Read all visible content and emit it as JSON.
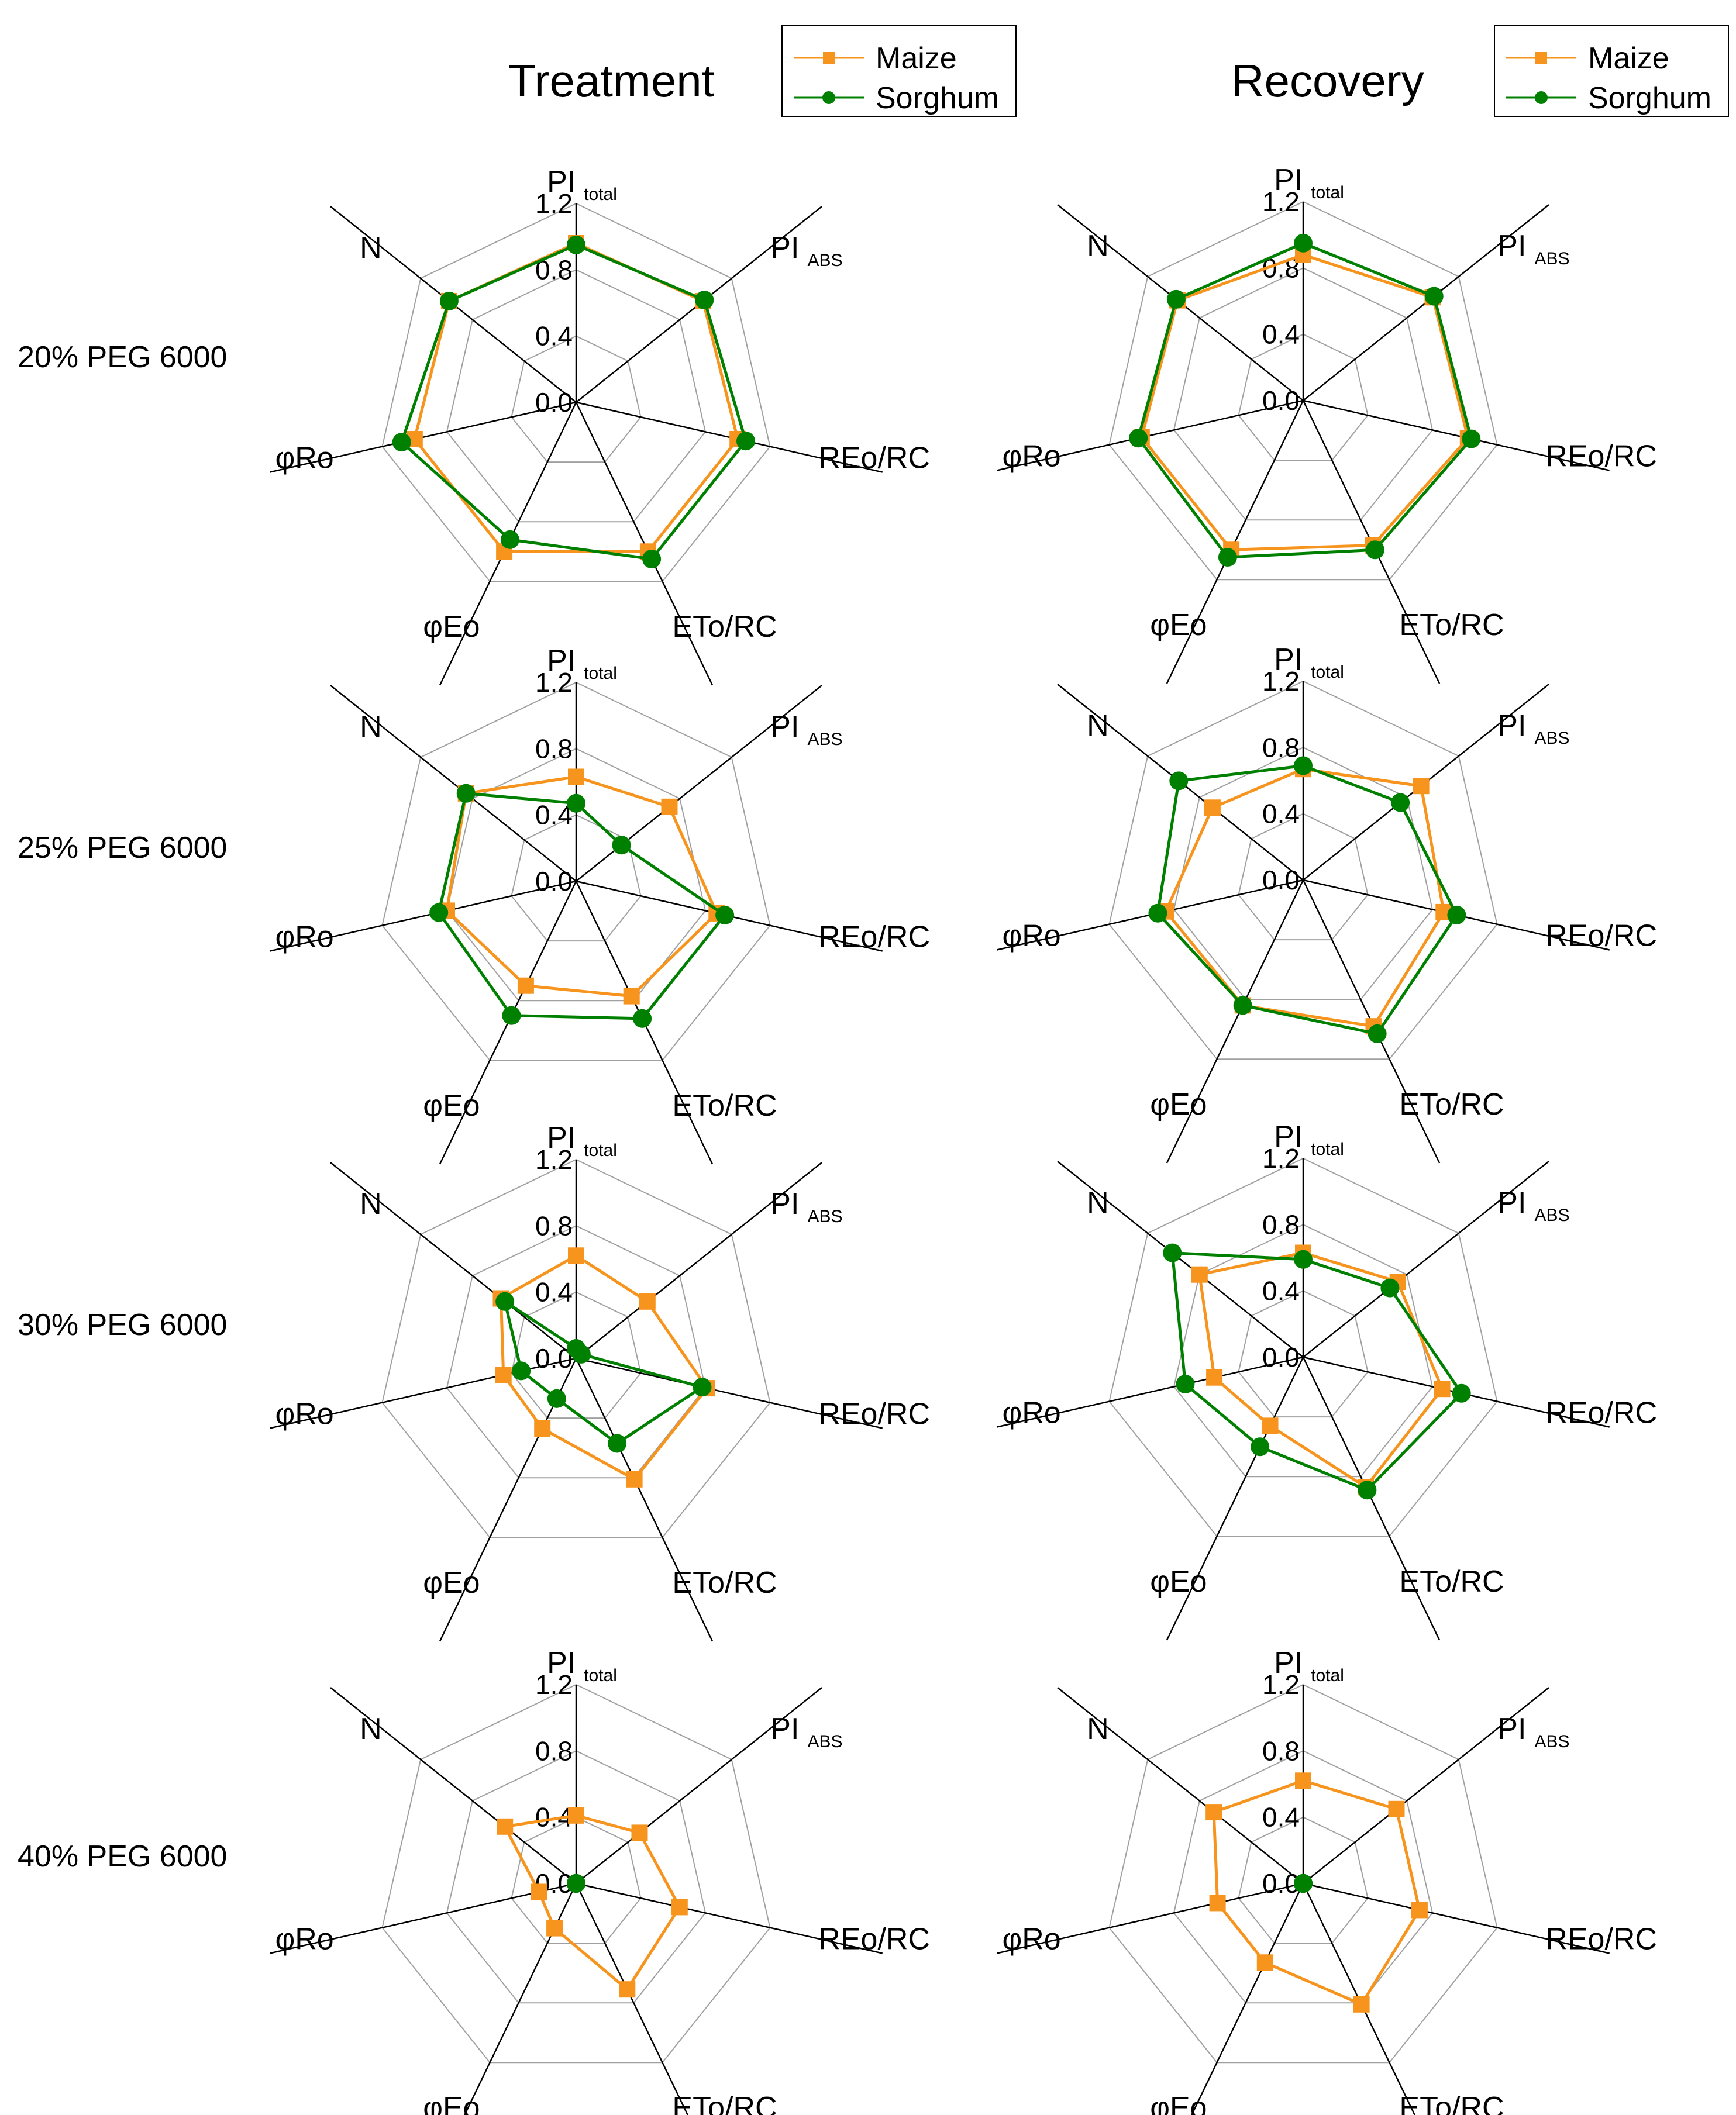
{
  "column_titles": [
    "Treatment",
    "Recovery"
  ],
  "row_labels": [
    "20% PEG 6000",
    "25% PEG 6000",
    "30% PEG 6000",
    "40% PEG 6000"
  ],
  "legend": {
    "items": [
      {
        "name": "Maize",
        "color": "#F7941D",
        "marker": "square"
      },
      {
        "name": "Sorghum",
        "color": "#008000",
        "marker": "circle"
      }
    ]
  },
  "axes": [
    {
      "main": "PI",
      "sub": "total"
    },
    {
      "main": "PI",
      "sub": "ABS"
    },
    {
      "main": "REo/RC",
      "sub": ""
    },
    {
      "main": "ETo/RC",
      "sub": ""
    },
    {
      "main": "φEo",
      "sub": ""
    },
    {
      "main": "φRo",
      "sub": ""
    },
    {
      "main": "N",
      "sub": ""
    }
  ],
  "tick_labels": [
    "0.0",
    "0.4",
    "0.8",
    "1.2"
  ],
  "chart_data": [
    {
      "type": "radar",
      "title": "Treatment",
      "row": "20% PEG 6000",
      "rmax": 1.2,
      "ticks": [
        0,
        0.4,
        0.8,
        1.2
      ],
      "series": [
        {
          "name": "Maize",
          "values": [
            0.96,
            0.98,
            1.0,
            1.0,
            1.0,
            1.0,
            0.98
          ]
        },
        {
          "name": "Sorghum",
          "values": [
            0.95,
            0.99,
            1.05,
            1.05,
            0.92,
            1.08,
            0.98
          ]
        }
      ]
    },
    {
      "type": "radar",
      "title": "Recovery",
      "row": "20% PEG 6000",
      "rmax": 1.2,
      "ticks": [
        0,
        0.4,
        0.8,
        1.2
      ],
      "series": [
        {
          "name": "Maize",
          "values": [
            0.88,
            1.0,
            1.02,
            0.97,
            1.0,
            1.0,
            0.97
          ]
        },
        {
          "name": "Sorghum",
          "values": [
            0.95,
            1.01,
            1.04,
            1.0,
            1.05,
            1.02,
            0.98
          ]
        }
      ]
    },
    {
      "type": "radar",
      "title": "Treatment",
      "row": "25% PEG 6000",
      "rmax": 1.2,
      "ticks": [
        0,
        0.4,
        0.8,
        1.2
      ],
      "series": [
        {
          "name": "Maize",
          "values": [
            0.63,
            0.72,
            0.87,
            0.77,
            0.7,
            0.8,
            0.85
          ]
        },
        {
          "name": "Sorghum",
          "values": [
            0.47,
            0.35,
            0.92,
            0.92,
            0.9,
            0.85,
            0.85
          ]
        }
      ]
    },
    {
      "type": "radar",
      "title": "Recovery",
      "row": "25% PEG 6000",
      "rmax": 1.2,
      "ticks": [
        0,
        0.4,
        0.8,
        1.2
      ],
      "series": [
        {
          "name": "Maize",
          "values": [
            0.67,
            0.91,
            0.87,
            0.98,
            0.84,
            0.85,
            0.7
          ]
        },
        {
          "name": "Sorghum",
          "values": [
            0.69,
            0.75,
            0.95,
            1.03,
            0.84,
            0.9,
            0.96
          ]
        }
      ]
    },
    {
      "type": "radar",
      "title": "Treatment",
      "row": "30% PEG 6000",
      "rmax": 1.2,
      "ticks": [
        0,
        0.4,
        0.8,
        1.2
      ],
      "series": [
        {
          "name": "Maize",
          "values": [
            0.62,
            0.55,
            0.81,
            0.81,
            0.47,
            0.45,
            0.58
          ]
        },
        {
          "name": "Sorghum",
          "values": [
            0.06,
            0.04,
            0.78,
            0.57,
            0.27,
            0.34,
            0.55
          ]
        }
      ]
    },
    {
      "type": "radar",
      "title": "Recovery",
      "row": "30% PEG 6000",
      "rmax": 1.2,
      "ticks": [
        0,
        0.4,
        0.8,
        1.2
      ],
      "series": [
        {
          "name": "Maize",
          "values": [
            0.63,
            0.73,
            0.86,
            0.87,
            0.46,
            0.55,
            0.8
          ]
        },
        {
          "name": "Sorghum",
          "values": [
            0.59,
            0.67,
            0.98,
            0.89,
            0.6,
            0.73,
            1.01
          ]
        }
      ]
    },
    {
      "type": "radar",
      "title": "Treatment",
      "row": "40% PEG 6000",
      "rmax": 1.2,
      "ticks": [
        0,
        0.4,
        0.8,
        1.2
      ],
      "series": [
        {
          "name": "Maize",
          "values": [
            0.41,
            0.49,
            0.64,
            0.71,
            0.3,
            0.23,
            0.55
          ]
        },
        {
          "name": "Sorghum",
          "values": [
            0.0,
            0.0,
            0.0,
            0.0,
            0.0,
            0.0,
            0.0
          ]
        }
      ]
    },
    {
      "type": "radar",
      "title": "Recovery",
      "row": "40% PEG 6000",
      "rmax": 1.2,
      "ticks": [
        0,
        0.4,
        0.8,
        1.2
      ],
      "series": [
        {
          "name": "Maize",
          "values": [
            0.62,
            0.72,
            0.72,
            0.81,
            0.53,
            0.53,
            0.69
          ]
        },
        {
          "name": "Sorghum",
          "values": [
            0.0,
            0.0,
            0.0,
            0.0,
            0.0,
            0.0,
            0.0
          ]
        }
      ]
    }
  ]
}
